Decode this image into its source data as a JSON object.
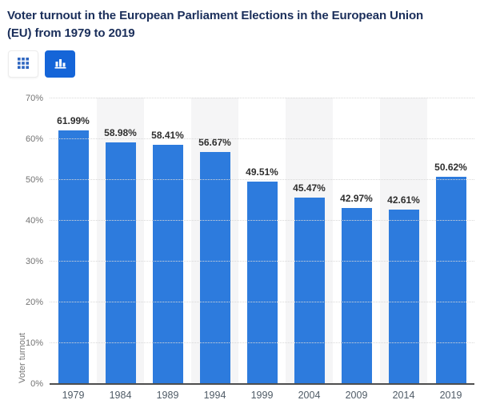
{
  "page": {
    "title_lines": [
      "Voter turnout in the European Parliament Elections in the European Union",
      "(EU) from 1979 to 2019"
    ]
  },
  "toolbar": {
    "buttons": [
      {
        "name": "table-view-button",
        "icon": "grid-icon",
        "active": false
      },
      {
        "name": "chart-view-button",
        "icon": "bar-chart-icon",
        "active": true
      }
    ]
  },
  "chart_data": {
    "type": "bar",
    "title": "Voter turnout in the European Parliament Elections in the European Union (EU) from 1979 to 2019",
    "categories": [
      "1979",
      "1984",
      "1989",
      "1994",
      "1999",
      "2004",
      "2009",
      "2014",
      "2019"
    ],
    "values": [
      61.99,
      58.98,
      58.41,
      56.67,
      49.51,
      45.47,
      42.97,
      42.61,
      50.62
    ],
    "value_labels": [
      "61.99%",
      "58.98%",
      "58.41%",
      "56.67%",
      "49.51%",
      "45.47%",
      "42.97%",
      "42.61%",
      "50.62%"
    ],
    "xlabel": "",
    "ylabel": "Voter turnout",
    "ylim": [
      0,
      70
    ],
    "y_tick_values": [
      0,
      10,
      20,
      30,
      40,
      50,
      60,
      70
    ],
    "y_tick_labels": [
      "0%",
      "10%",
      "20%",
      "30%",
      "40%",
      "50%",
      "60%",
      "70%"
    ],
    "grid": "horizontal-dotted",
    "legend": "none",
    "plot_bands": "alternating-light-gray-columns"
  },
  "colors": {
    "bar": "#2d7bdd",
    "active_button": "#1565d8",
    "title_text": "#1a2e5a",
    "band": "#f5f5f6",
    "gridline": "#d8d8d8",
    "axis_line": "#4e4e4e",
    "tick_text": "#737373",
    "x_label_text": "#4f5b66",
    "value_label_text": "#2e2e2e",
    "grid_icon_blue": "#2e66c0"
  }
}
